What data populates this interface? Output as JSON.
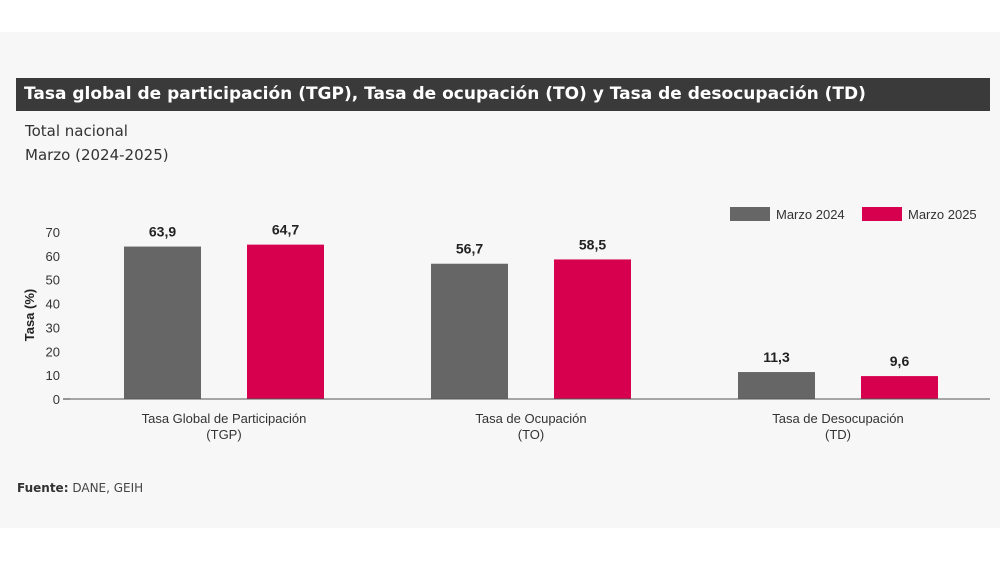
{
  "header": {
    "title": "Tasa global de participación (TGP), Tasa de ocupación (TO) y Tasa de desocupación (TD)",
    "subtitle1": "Total nacional",
    "subtitle2": "Marzo (2024-2025)"
  },
  "footer": {
    "source_label": "Fuente:",
    "source_value": "DANE, GEIH"
  },
  "chart_data": {
    "type": "bar",
    "categories": [
      [
        "Tasa Global de Participación",
        "(TGP)"
      ],
      [
        "Tasa de Ocupación",
        "(TO)"
      ],
      [
        "Tasa de Desocupación",
        "(TD)"
      ]
    ],
    "series": [
      {
        "name": "Marzo 2024",
        "color": "#666666",
        "values": [
          63.9,
          56.7,
          11.3
        ],
        "labels": [
          "63,9",
          "56,7",
          "11,3"
        ]
      },
      {
        "name": "Marzo 2025",
        "color": "#d6004f",
        "values": [
          64.7,
          58.5,
          9.6
        ],
        "labels": [
          "64,7",
          "58,5",
          "9,6"
        ]
      }
    ],
    "ylabel": "Tasa (%)",
    "yticks": [
      0,
      10,
      20,
      30,
      40,
      50,
      60,
      70
    ],
    "ylim": [
      0,
      70
    ],
    "legend": "top-right",
    "grid": false
  }
}
